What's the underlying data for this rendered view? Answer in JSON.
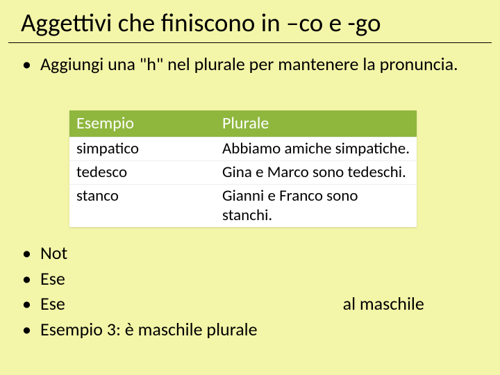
{
  "title": "Aggettivi che finiscono in –co e -go",
  "intro": "Aggiungi una \"h\" nel plurale per mantenere la pronuncia.",
  "table": {
    "header_bg": "#8fb73e",
    "header_fg": "#ffffff",
    "columns": [
      "Esempio",
      "Plurale"
    ],
    "rows": [
      [
        "simpatico",
        "Abbiamo amiche simpatiche."
      ],
      [
        "tedesco",
        "Gina e Marco sono tedeschi."
      ],
      [
        "stanco",
        "Gianni e Franco sono stanchi."
      ]
    ]
  },
  "bullets": {
    "b1": "Not",
    "b2": "Ese",
    "b3_a": "Ese",
    "b3_b": "al maschile",
    "b4": "Esempio 3: è maschile plurale"
  },
  "colors": {
    "background": "#f3f5a8",
    "text": "#000000"
  }
}
